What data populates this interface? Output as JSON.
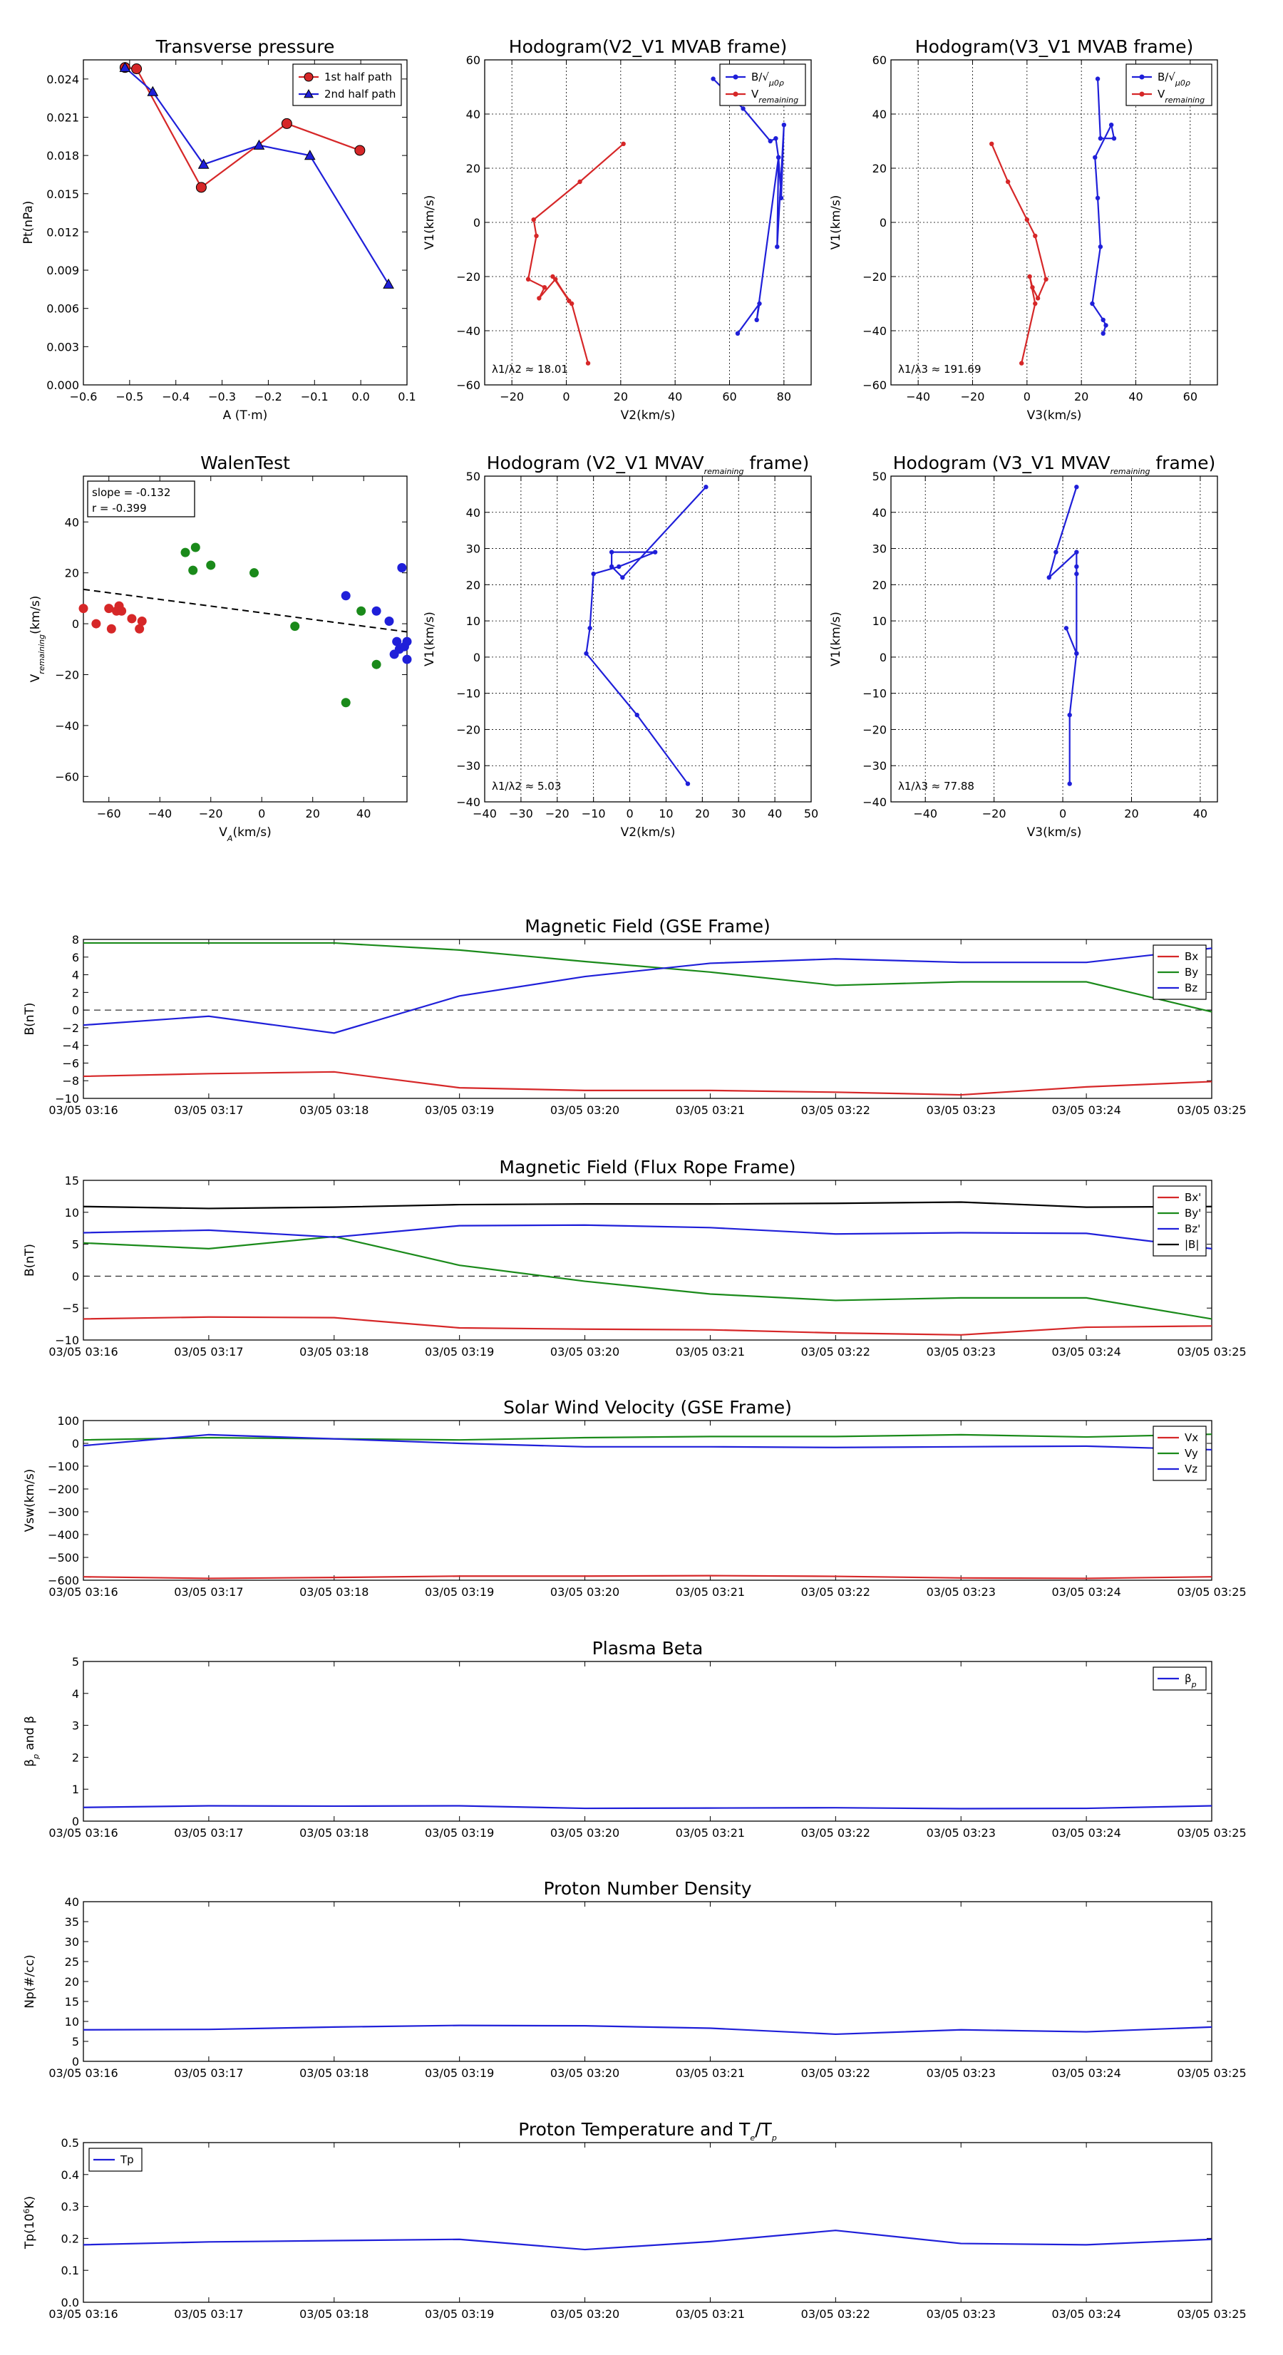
{
  "chart_data": [
    {
      "id": "tp",
      "type": "line",
      "title": "Transverse pressure",
      "xlabel": "A (T·m)",
      "ylabel": "Pt(nPa)",
      "xlim": [
        -0.6,
        0.1
      ],
      "ylim": [
        0,
        0.0255
      ],
      "xticks": [
        -0.6,
        -0.5,
        -0.4,
        -0.3,
        -0.2,
        -0.1,
        0.0,
        0.1
      ],
      "xticklabels": [
        "−0.6",
        "−0.5",
        "−0.4",
        "−0.3",
        "−0.2",
        "−0.1",
        "0.0",
        "0.1"
      ],
      "yticks": [
        0,
        0.003,
        0.006,
        0.009,
        0.012,
        0.015,
        0.018,
        0.021,
        0.024
      ],
      "yticklabels": [
        "0.000",
        "0.003",
        "0.006",
        "0.009",
        "0.012",
        "0.015",
        "0.018",
        "0.021",
        "0.024"
      ],
      "grid": false,
      "legend": "top-right",
      "series": [
        {
          "name": "1st half path",
          "color": "#d62728",
          "marker": "circle",
          "x": [
            -0.51,
            -0.485,
            -0.345,
            -0.16,
            -0.002
          ],
          "y": [
            0.0249,
            0.0248,
            0.0155,
            0.0205,
            0.0184
          ]
        },
        {
          "name": "2nd half path",
          "color": "#1f1fd9",
          "marker": "triangle",
          "x": [
            -0.51,
            -0.45,
            -0.34,
            -0.22,
            -0.11,
            0.06
          ],
          "y": [
            0.0249,
            0.023,
            0.0173,
            0.0188,
            0.018,
            0.0079
          ]
        }
      ]
    },
    {
      "id": "h1",
      "type": "line",
      "title": "Hodogram(V2_V1 MVAB frame)",
      "xlabel": "V2(km/s)",
      "ylabel": "V1(km/s)",
      "xlim": [
        -30,
        90
      ],
      "ylim": [
        -60,
        60
      ],
      "xticks": [
        -20,
        0,
        20,
        40,
        60,
        80
      ],
      "xticklabels": [
        "−20",
        "0",
        "20",
        "40",
        "60",
        "80"
      ],
      "yticks": [
        -60,
        -40,
        -20,
        0,
        20,
        40,
        60
      ],
      "yticklabels": [
        "−60",
        "−40",
        "−20",
        "0",
        "20",
        "40",
        "60"
      ],
      "grid": true,
      "legend": "top-right",
      "annotation": "λ1/λ2 ≈ 18.01",
      "series": [
        {
          "name": "B/√μ0ρ",
          "color": "#1f1fd9",
          "x": [
            54,
            65,
            75,
            77,
            78,
            79,
            80,
            77.5,
            78,
            70,
            71,
            63
          ],
          "y": [
            53,
            42,
            30,
            31,
            24,
            9,
            36,
            -9,
            24,
            -36,
            -30,
            -41
          ]
        },
        {
          "name": "Vremaining",
          "color": "#d62728",
          "x": [
            21,
            5,
            -12,
            -11,
            -14,
            -8,
            -10,
            -4,
            1,
            -5,
            2,
            8
          ],
          "y": [
            29,
            15,
            1,
            -5,
            -21,
            -24,
            -28,
            -21,
            -29,
            -20,
            -30,
            -52
          ]
        }
      ]
    },
    {
      "id": "h2",
      "type": "line",
      "title": "Hodogram(V3_V1 MVAB frame)",
      "xlabel": "V3(km/s)",
      "ylabel": "V1(km/s)",
      "xlim": [
        -50,
        70
      ],
      "ylim": [
        -60,
        60
      ],
      "xticks": [
        -40,
        -20,
        0,
        20,
        40,
        60
      ],
      "xticklabels": [
        "−40",
        "−20",
        "0",
        "20",
        "40",
        "60"
      ],
      "yticks": [
        -60,
        -40,
        -20,
        0,
        20,
        40,
        60
      ],
      "yticklabels": [
        "−60",
        "−40",
        "−20",
        "0",
        "20",
        "40",
        "60"
      ],
      "grid": true,
      "legend": "top-right",
      "annotation": "λ1/λ3 ≈ 191.69",
      "series": [
        {
          "name": "B/√μ0ρ",
          "color": "#1f1fd9",
          "x": [
            26,
            27,
            32,
            31,
            25,
            26,
            27,
            24,
            28,
            29,
            28
          ],
          "y": [
            53,
            31,
            31,
            36,
            24,
            9,
            -9,
            -30,
            -36,
            -38,
            -41
          ]
        },
        {
          "name": "Vremaining",
          "color": "#d62728",
          "x": [
            -13,
            -7,
            0,
            3,
            7,
            4,
            2,
            1,
            3,
            -2
          ],
          "y": [
            29,
            15,
            1,
            -5,
            -21,
            -28,
            -24,
            -20,
            -30,
            -52
          ]
        }
      ]
    },
    {
      "id": "walen",
      "type": "scatter",
      "title": "WalenTest",
      "xlabel": "V A(km/s)",
      "ylabel": "V remaining(km/s)",
      "xlim": [
        -70,
        57
      ],
      "ylim": [
        -70,
        58
      ],
      "xticks": [
        -60,
        -40,
        -20,
        0,
        20,
        40
      ],
      "xticklabels": [
        "−60",
        "−40",
        "−20",
        "0",
        "20",
        "40"
      ],
      "yticks": [
        -60,
        -40,
        -20,
        0,
        20,
        40
      ],
      "yticklabels": [
        "−60",
        "−40",
        "−20",
        "0",
        "20",
        "40"
      ],
      "grid": false,
      "annotation": [
        "slope = -0.132",
        "r = -0.399"
      ],
      "fit": {
        "slope": -0.132,
        "x": [
          -70,
          57
        ],
        "y": [
          13.5,
          -3.2
        ]
      },
      "series": [
        {
          "color": "#d62728",
          "x": [
            -70,
            -65,
            -60,
            -59,
            -57,
            -56,
            -55,
            -51,
            -48,
            -47
          ],
          "y": [
            6,
            0,
            6,
            -2,
            5,
            7,
            5,
            2,
            -2,
            1
          ]
        },
        {
          "color": "#1a8a1a",
          "x": [
            -30,
            -27,
            -26,
            -20,
            -3,
            13,
            33,
            39,
            45
          ],
          "y": [
            28,
            21,
            30,
            23,
            20,
            -1,
            -31,
            5,
            -16
          ]
        },
        {
          "color": "#1f1fd9",
          "x": [
            33,
            45,
            50,
            53,
            52,
            54,
            55,
            56,
            57,
            57
          ],
          "y": [
            11,
            5,
            1,
            -7,
            -12,
            -10,
            22,
            -9,
            -14,
            -7
          ]
        }
      ]
    },
    {
      "id": "h3",
      "type": "line",
      "title": "Hodogram (V2_V1 MVAV remaining frame)",
      "xlabel": "V2(km/s)",
      "ylabel": "V1(km/s)",
      "xlim": [
        -40,
        50
      ],
      "ylim": [
        -40,
        50
      ],
      "xticks": [
        -40,
        -30,
        -20,
        -10,
        0,
        10,
        20,
        30,
        40,
        50
      ],
      "xticklabels": [
        "−40",
        "−30",
        "−20",
        "−10",
        "0",
        "10",
        "20",
        "30",
        "40",
        "50"
      ],
      "yticks": [
        -40,
        -30,
        -20,
        -10,
        0,
        10,
        20,
        30,
        40,
        50
      ],
      "yticklabels": [
        "−40",
        "−30",
        "−20",
        "−10",
        "0",
        "10",
        "20",
        "30",
        "40",
        "50"
      ],
      "grid": true,
      "annotation": "λ1/λ2 ≈ 5.03",
      "series": [
        {
          "color": "#1f1fd9",
          "x": [
            21,
            -2,
            -5,
            -5,
            7,
            -3,
            -10,
            -11,
            -12,
            2,
            16
          ],
          "y": [
            47,
            22,
            25,
            29,
            29,
            25,
            23,
            8,
            1,
            -16,
            -35
          ]
        }
      ]
    },
    {
      "id": "h4",
      "type": "line",
      "title": "Hodogram (V3_V1 MVAV remaining frame)",
      "xlabel": "V3(km/s)",
      "ylabel": "V1(km/s)",
      "xlim": [
        -50,
        45
      ],
      "ylim": [
        -40,
        50
      ],
      "xticks": [
        -40,
        -20,
        0,
        20,
        40
      ],
      "xticklabels": [
        "−40",
        "−20",
        "0",
        "20",
        "40"
      ],
      "yticks": [
        -40,
        -30,
        -20,
        -10,
        0,
        10,
        20,
        30,
        40,
        50
      ],
      "yticklabels": [
        "−40",
        "−30",
        "−20",
        "−10",
        "0",
        "10",
        "20",
        "30",
        "40",
        "50"
      ],
      "grid": true,
      "annotation": "λ1/λ3 ≈ 77.88",
      "series": [
        {
          "color": "#1f1fd9",
          "x": [
            4,
            -2,
            -4,
            4,
            4,
            4,
            4,
            1,
            4,
            2,
            2
          ],
          "y": [
            47,
            29,
            22,
            29,
            25,
            23,
            1,
            8,
            1,
            -16,
            -35
          ]
        }
      ]
    },
    {
      "id": "ts1",
      "type": "line",
      "title": "Magnetic Field (GSE Frame)",
      "xlabel": "",
      "ylabel": "B(nT)",
      "ylim": [
        -10,
        8
      ],
      "yticks": [
        -10,
        -8,
        -6,
        -4,
        -2,
        0,
        2,
        4,
        6,
        8
      ],
      "yticklabels": [
        "−10",
        "−8",
        "−6",
        "−4",
        "−2",
        "0",
        "2",
        "4",
        "6",
        "8"
      ],
      "zeroline": true,
      "legend": "top-right",
      "series": [
        {
          "name": "Bx",
          "color": "#d62728",
          "values": [
            -7.5,
            -7.2,
            -7.0,
            -8.8,
            -9.1,
            -9.1,
            -9.3,
            -9.6,
            -8.7,
            -8.1
          ]
        },
        {
          "name": "By",
          "color": "#1a8a1a",
          "values": [
            7.6,
            7.6,
            7.6,
            6.8,
            5.5,
            4.3,
            2.8,
            3.2,
            3.2,
            -0.2
          ]
        },
        {
          "name": "Bz",
          "color": "#1f1fd9",
          "values": [
            -1.7,
            -0.7,
            -2.6,
            1.6,
            3.8,
            5.3,
            5.8,
            5.4,
            5.4,
            7.0
          ]
        }
      ]
    },
    {
      "id": "ts2",
      "type": "line",
      "title": "Magnetic Field (Flux Rope Frame)",
      "xlabel": "",
      "ylabel": "B(nT)",
      "ylim": [
        -10,
        15
      ],
      "yticks": [
        -10,
        -5,
        0,
        5,
        10,
        15
      ],
      "yticklabels": [
        "−10",
        "−5",
        "0",
        "5",
        "10",
        "15"
      ],
      "zeroline": true,
      "legend": "top-right",
      "series": [
        {
          "name": "Bx'",
          "color": "#d62728",
          "values": [
            -6.7,
            -6.4,
            -6.5,
            -8.1,
            -8.3,
            -8.4,
            -8.9,
            -9.2,
            -8.0,
            -7.8
          ]
        },
        {
          "name": "By'",
          "color": "#1a8a1a",
          "values": [
            5.2,
            4.3,
            6.2,
            1.7,
            -0.8,
            -2.8,
            -3.8,
            -3.4,
            -3.4,
            -6.7
          ]
        },
        {
          "name": "Bz'",
          "color": "#1f1fd9",
          "values": [
            6.8,
            7.2,
            6.1,
            7.9,
            8.0,
            7.6,
            6.6,
            6.8,
            6.7,
            4.3
          ]
        },
        {
          "name": "|B|",
          "color": "#000000",
          "values": [
            10.9,
            10.6,
            10.8,
            11.2,
            11.3,
            11.3,
            11.4,
            11.6,
            10.8,
            10.9
          ]
        }
      ]
    },
    {
      "id": "ts3",
      "type": "line",
      "title": "Solar Wind Velocity (GSE Frame)",
      "xlabel": "",
      "ylabel": "Vsw(km/s)",
      "ylim": [
        -600,
        100
      ],
      "yticks": [
        -600,
        -500,
        -400,
        -300,
        -200,
        -100,
        0,
        100
      ],
      "yticklabels": [
        "−600",
        "−500",
        "−400",
        "−300",
        "−200",
        "−100",
        "0",
        "100"
      ],
      "legend": "top-right",
      "series": [
        {
          "name": "Vx",
          "color": "#d62728",
          "values": [
            -585,
            -592,
            -588,
            -582,
            -582,
            -580,
            -583,
            -590,
            -592,
            -585
          ]
        },
        {
          "name": "Vy",
          "color": "#1a8a1a",
          "values": [
            15,
            25,
            20,
            15,
            25,
            30,
            30,
            38,
            28,
            40
          ]
        },
        {
          "name": "Vz",
          "color": "#1f1fd9",
          "values": [
            -10,
            38,
            20,
            0,
            -15,
            -15,
            -18,
            -15,
            -12,
            -28
          ]
        }
      ]
    },
    {
      "id": "ts4",
      "type": "line",
      "title": "Plasma Beta",
      "xlabel": "",
      "ylabel": "βp and β",
      "ylim": [
        0,
        5
      ],
      "yticks": [
        0,
        1,
        2,
        3,
        4,
        5
      ],
      "yticklabels": [
        "0",
        "1",
        "2",
        "3",
        "4",
        "5"
      ],
      "legend": "top-right",
      "series": [
        {
          "name": "βp",
          "color": "#1f1fd9",
          "values": [
            0.43,
            0.48,
            0.47,
            0.48,
            0.4,
            0.41,
            0.42,
            0.39,
            0.4,
            0.48
          ]
        }
      ]
    },
    {
      "id": "ts5",
      "type": "line",
      "title": "Proton Number Density",
      "xlabel": "",
      "ylabel": "Np(#/cc)",
      "ylim": [
        0,
        40
      ],
      "yticks": [
        0,
        5,
        10,
        15,
        20,
        25,
        30,
        35,
        40
      ],
      "yticklabels": [
        "0",
        "5",
        "10",
        "15",
        "20",
        "25",
        "30",
        "35",
        "40"
      ],
      "series": [
        {
          "color": "#1f1fd9",
          "values": [
            7.9,
            8.0,
            8.6,
            9.0,
            8.9,
            8.3,
            6.8,
            7.9,
            7.4,
            8.6
          ]
        }
      ]
    },
    {
      "id": "ts6",
      "type": "line",
      "title": "Proton Temperature and Te/Tp",
      "xlabel": "",
      "ylabel": "Tp(10^6 K)",
      "ylim": [
        0,
        0.5
      ],
      "yticks": [
        0,
        0.1,
        0.2,
        0.3,
        0.4,
        0.5
      ],
      "yticklabels": [
        "0.0",
        "0.1",
        "0.2",
        "0.3",
        "0.4",
        "0.5"
      ],
      "legend": "top-left",
      "series": [
        {
          "name": "Tp",
          "color": "#1f1fd9",
          "values": [
            0.18,
            0.189,
            0.193,
            0.197,
            0.165,
            0.19,
            0.225,
            0.184,
            0.18,
            0.197
          ]
        }
      ]
    }
  ],
  "time_ticks": [
    "03/05 03:16",
    "03/05 03:17",
    "03/05 03:18",
    "03/05 03:19",
    "03/05 03:20",
    "03/05 03:21",
    "03/05 03:22",
    "03/05 03:23",
    "03/05 03:24",
    "03/05 03:25"
  ]
}
